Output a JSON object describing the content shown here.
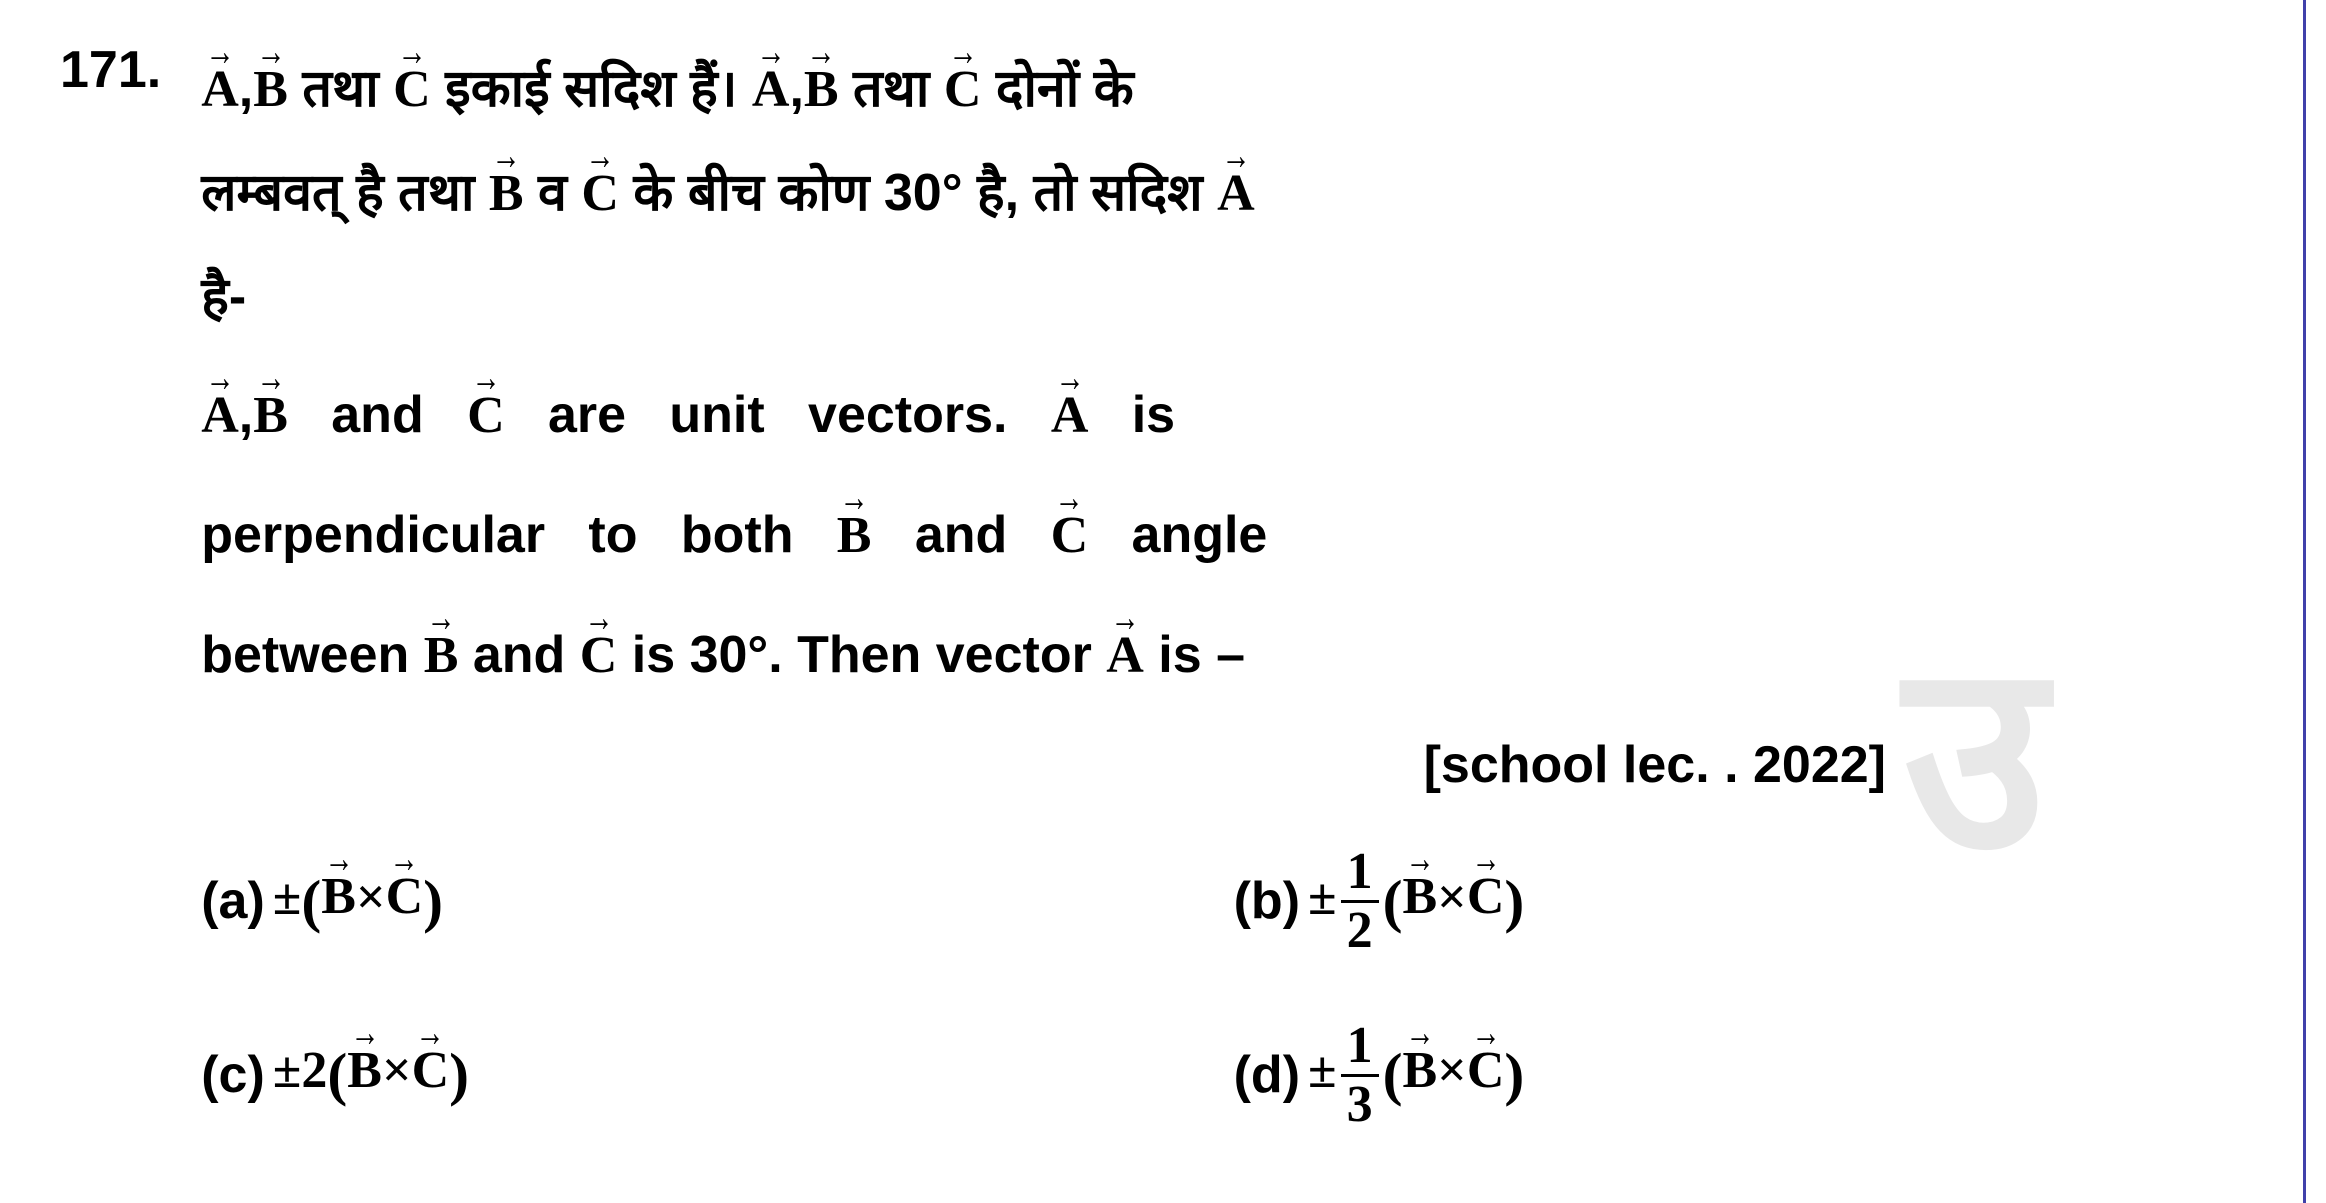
{
  "question": {
    "number": "171.",
    "hindi_line1_part1": "A",
    "hindi_line1_comma": ",",
    "hindi_line1_part2": "B",
    "hindi_line1_text1": " तथा ",
    "hindi_line1_part3": "C",
    "hindi_line1_text2": " इकाई सदिश हैं। ",
    "hindi_line1_part4": "A",
    "hindi_line1_comma2": ",",
    "hindi_line1_part5": "B",
    "hindi_line1_text3": " तथा ",
    "hindi_line1_part6": "C",
    "hindi_line1_text4": " दोनों के",
    "hindi_line2_text1": "लम्बवत् है तथा ",
    "hindi_line2_part1": "B",
    "hindi_line2_text2": " व ",
    "hindi_line2_part2": "C",
    "hindi_line2_text3": " के बीच कोण 30° है, तो सदिश ",
    "hindi_line2_part3": "A",
    "hindi_line3": "है-",
    "eng_line1_part1": "A",
    "eng_line1_comma": ",",
    "eng_line1_part2": "B",
    "eng_line1_text1": "   and   ",
    "eng_line1_part3": "C",
    "eng_line1_text2": "   are   unit   vectors.   ",
    "eng_line1_part4": "A",
    "eng_line1_text3": "   is",
    "eng_line2_text1": "perpendicular   to   both   ",
    "eng_line2_part1": "B",
    "eng_line2_text2": "   and   ",
    "eng_line2_part2": "C",
    "eng_line2_text3": "   angle",
    "eng_line3_text1": "between ",
    "eng_line3_part1": "B",
    "eng_line3_text2": " and ",
    "eng_line3_part2": "C",
    "eng_line3_text3": " is 30°. Then vector ",
    "eng_line3_part3": "A",
    "eng_line3_text4": " is –",
    "citation": "[school lec. . 2022]"
  },
  "options": {
    "a": {
      "label": "(a)",
      "prefix": "±",
      "lparen": "(",
      "vec1": "B",
      "times": "×",
      "vec2": "C",
      "rparen": ")"
    },
    "b": {
      "label": "(b)",
      "prefix": "±",
      "frac_num": "1",
      "frac_den": "2",
      "lparen": "(",
      "vec1": "B",
      "times": "×",
      "vec2": "C",
      "rparen": ")"
    },
    "c": {
      "label": "(c)",
      "prefix": "±2",
      "lparen": "(",
      "vec1": "B",
      "times": "×",
      "vec2": "C",
      "rparen": ")"
    },
    "d": {
      "label": "(d)",
      "prefix": "±",
      "frac_num": "1",
      "frac_den": "3",
      "lparen": "(",
      "vec1": "B",
      "times": "×",
      "vec2": "C",
      "rparen": ")"
    }
  },
  "watermark": "उ"
}
